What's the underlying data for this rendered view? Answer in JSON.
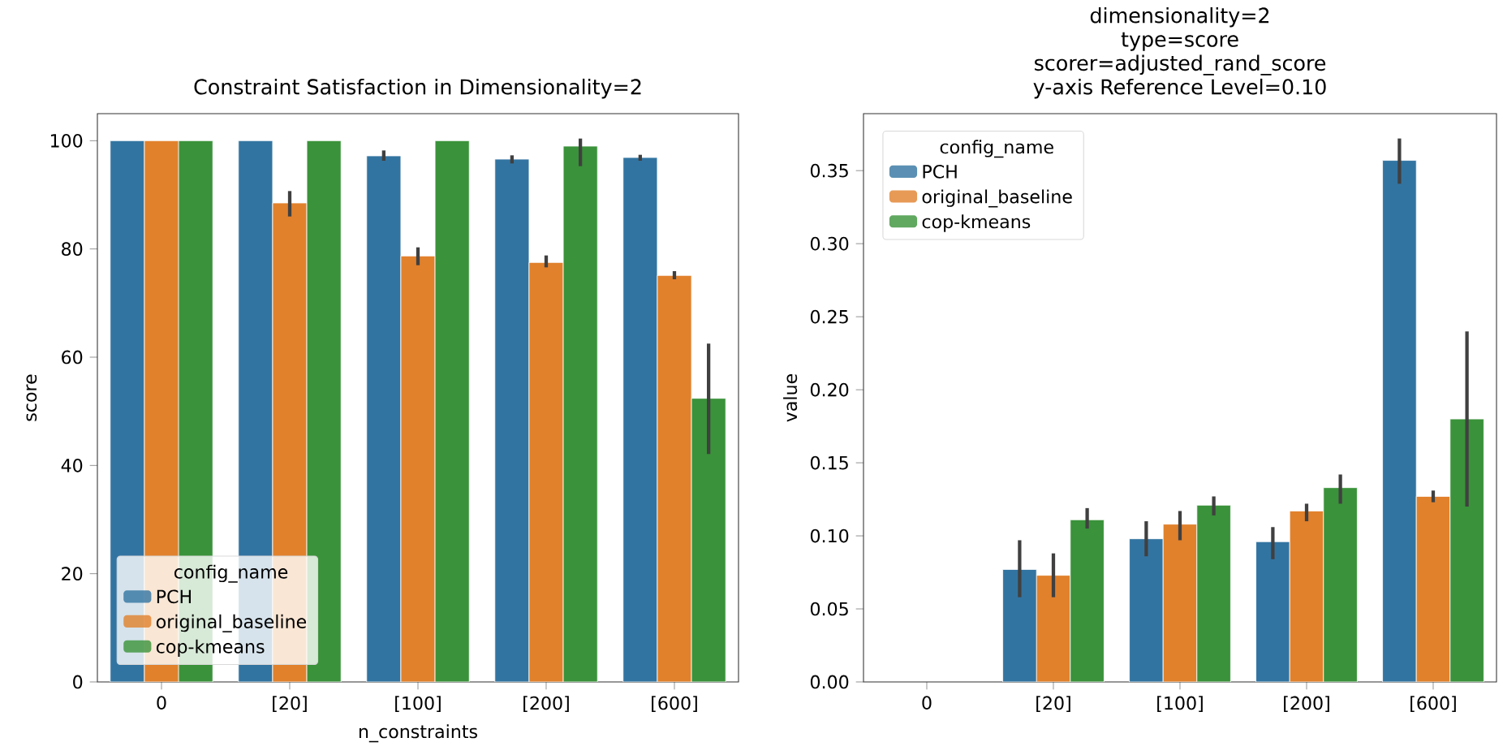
{
  "chart_data": [
    {
      "type": "bar",
      "title": "Constraint Satisfaction in Dimensionality=2",
      "xlabel": "n_constraints",
      "ylabel": "score",
      "legend_title": "config_name",
      "legend": "bottom left",
      "categories": [
        "0",
        "[20]",
        "[100]",
        "[200]",
        "[600]"
      ],
      "ylim": [
        0,
        105
      ],
      "yticks": [
        0,
        20,
        40,
        60,
        80,
        100
      ],
      "series": [
        {
          "name": "PCH",
          "color": "#3274a1",
          "values": [
            100,
            100,
            97.2,
            96.6,
            96.9
          ],
          "errors": [
            null,
            null,
            [
              96.3,
              98.2
            ],
            [
              95.8,
              97.3
            ],
            [
              96.3,
              97.4
            ]
          ]
        },
        {
          "name": "original_baseline",
          "color": "#e1812c",
          "values": [
            100,
            88.5,
            78.7,
            77.5,
            75.1
          ],
          "errors": [
            null,
            [
              86,
              90.7
            ],
            [
              77,
              80.3
            ],
            [
              76.6,
              78.8
            ],
            [
              74.4,
              75.9
            ]
          ]
        },
        {
          "name": "cop-kmeans",
          "color": "#3a923a",
          "values": [
            100,
            100,
            100,
            99,
            52.4
          ],
          "errors": [
            null,
            null,
            null,
            [
              95.3,
              100.4
            ],
            [
              42.1,
              62.5
            ]
          ]
        }
      ]
    },
    {
      "type": "bar",
      "title": "dimensionality=2",
      "subtitle": "type=score",
      "annotations": [
        "scorer=adjusted_rand_score",
        "y-axis Reference Level=0.10"
      ],
      "ylabel": "value",
      "legend_title": "config_name",
      "legend": "top left",
      "categories": [
        "0",
        "[20]",
        "[100]",
        "[200]",
        "[600]"
      ],
      "ylim": [
        0,
        0.389
      ],
      "yticks": [
        {
          "value": 0,
          "label": "0.00"
        },
        {
          "value": 0.05,
          "label": "0.05"
        },
        {
          "value": 0.1,
          "label": "0.10"
        },
        {
          "value": 0.15,
          "label": "0.15"
        },
        {
          "value": 0.2,
          "label": "0.20"
        },
        {
          "value": 0.25,
          "label": "0.25"
        },
        {
          "value": 0.3,
          "label": "0.30"
        },
        {
          "value": 0.35,
          "label": "0.35"
        }
      ],
      "series": [
        {
          "name": "PCH",
          "color": "#3274a1",
          "values": [
            null,
            0.077,
            0.098,
            0.096,
            0.357
          ],
          "errors": [
            null,
            [
              0.058,
              0.097
            ],
            [
              0.086,
              0.11
            ],
            [
              0.084,
              0.106
            ],
            [
              0.341,
              0.372
            ]
          ]
        },
        {
          "name": "original_baseline",
          "color": "#e1812c",
          "values": [
            null,
            0.073,
            0.108,
            0.117,
            0.127
          ],
          "errors": [
            null,
            [
              0.058,
              0.088
            ],
            [
              0.097,
              0.117
            ],
            [
              0.11,
              0.122
            ],
            [
              0.123,
              0.131
            ]
          ]
        },
        {
          "name": "cop-kmeans",
          "color": "#3a923a",
          "values": [
            null,
            0.111,
            0.121,
            0.133,
            0.18
          ],
          "errors": [
            null,
            [
              0.105,
              0.119
            ],
            [
              0.114,
              0.127
            ],
            [
              0.122,
              0.142
            ],
            [
              0.12,
              0.24
            ]
          ]
        }
      ]
    }
  ]
}
